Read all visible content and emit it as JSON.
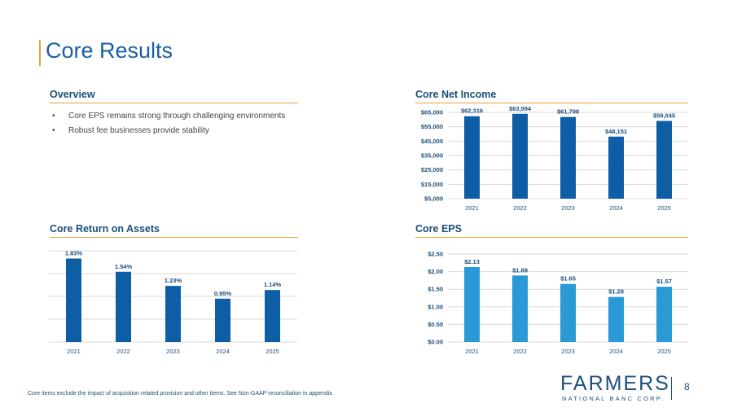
{
  "page_title": "Core Results",
  "overview": {
    "title": "Overview",
    "bullets": [
      "Core EPS remains strong through challenging environments",
      "Robust fee businesses provide stability"
    ]
  },
  "colors": {
    "dark_blue": "#0e5ea6",
    "light_blue": "#2a9ad6",
    "accent": "#e8a33d",
    "navy": "#1d4f7a"
  },
  "chart_data": [
    {
      "id": "core-net-income",
      "type": "bar",
      "title": "Core Net Income",
      "categories": [
        "2021",
        "2022",
        "2023",
        "2024",
        "2025"
      ],
      "values": [
        62316,
        63994,
        61798,
        48151,
        59045
      ],
      "data_labels": [
        "$62,316",
        "$63,994",
        "$61,798",
        "$48,151",
        "$59,045"
      ],
      "yticks": [
        5000,
        15000,
        25000,
        35000,
        45000,
        55000,
        65000
      ],
      "ytick_labels": [
        "$5,000",
        "$15,000",
        "$25,000",
        "$35,000",
        "$45,000",
        "$55,000",
        "$65,000"
      ],
      "ylim": [
        5000,
        65000
      ],
      "grid": true,
      "color": "#0e5ea6"
    },
    {
      "id": "core-roa",
      "type": "bar",
      "title": "Core Return on Assets",
      "categories": [
        "2021",
        "2022",
        "2023",
        "2024",
        "2025"
      ],
      "values": [
        1.83,
        1.54,
        1.23,
        0.95,
        1.14
      ],
      "data_labels": [
        "1.83%",
        "1.54%",
        "1.23%",
        "0.95%",
        "1.14%"
      ],
      "yticks": [
        0,
        0.5,
        1.0,
        1.5,
        2.0
      ],
      "ytick_labels": [],
      "ylim": [
        0,
        2.0
      ],
      "grid": true,
      "color": "#0e5ea6"
    },
    {
      "id": "core-eps",
      "type": "bar",
      "title": "Core EPS",
      "categories": [
        "2021",
        "2022",
        "2023",
        "2024",
        "2025"
      ],
      "values": [
        2.13,
        1.89,
        1.65,
        1.28,
        1.57
      ],
      "data_labels": [
        "$2.13",
        "$1.89",
        "$1.65",
        "$1.28",
        "$1.57"
      ],
      "yticks": [
        0,
        0.5,
        1.0,
        1.5,
        2.0,
        2.5
      ],
      "ytick_labels": [
        "$0.00",
        "$0.50",
        "$1.00",
        "$1.50",
        "$2.00",
        "$2.50"
      ],
      "ylim": [
        0,
        2.5
      ],
      "grid": true,
      "color": "#2a9ad6"
    }
  ],
  "footnote": "Core items exclude the impact of acquisition related provision and other items. See Non-GAAP reconciliation in appendix.",
  "logo": {
    "name": "FARMERS",
    "subtitle": "NATIONAL BANC CORP."
  },
  "page_number": "8"
}
